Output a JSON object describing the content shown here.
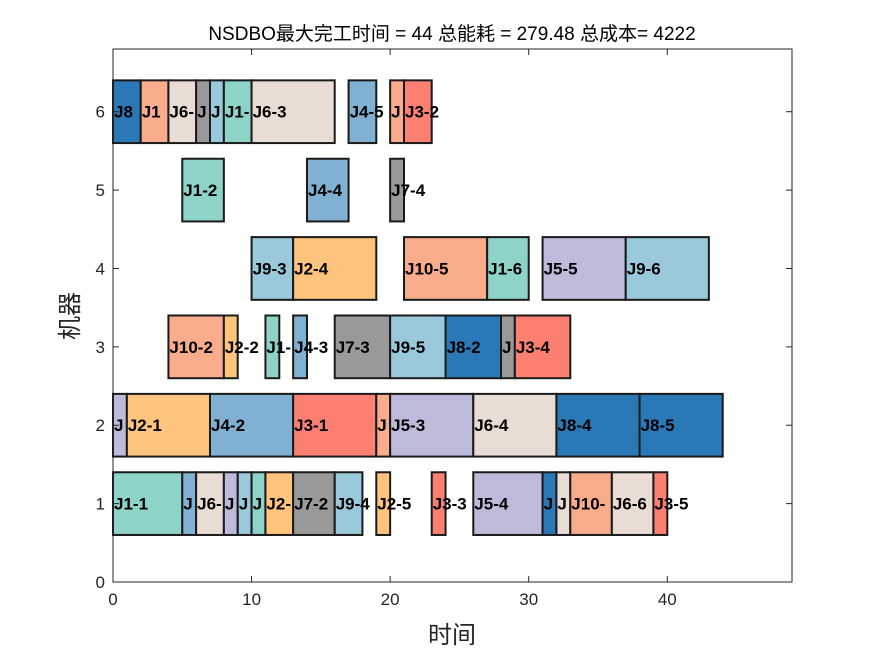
{
  "chart_data": {
    "type": "gantt",
    "title": "NSDBO最大完工时间 = 44 总能耗 = 279.48 总成本= 4222",
    "xlabel": "时间",
    "ylabel": "机器",
    "xlim": [
      0,
      49
    ],
    "ylim": [
      0,
      6.8
    ],
    "xticks": [
      "0",
      "10",
      "20",
      "30",
      "40"
    ],
    "yticks": [
      "0",
      "1",
      "2",
      "3",
      "4",
      "5",
      "6"
    ],
    "job_colors": {
      "J1": "#8dd3c7",
      "J2": "#fec47d",
      "J3": "#fb8072",
      "J4": "#80b1d3",
      "J5": "#bebada",
      "J6": "#e8dcd4",
      "J7": "#999999",
      "J8": "#2a78b5",
      "J9": "#9ac9db",
      "J10": "#f8ac8c"
    },
    "tasks": [
      {
        "machine": 6,
        "job": "J8",
        "start": 0,
        "end": 2,
        "label": "J8"
      },
      {
        "machine": 6,
        "job": "J10",
        "start": 2,
        "end": 4,
        "label": "J1"
      },
      {
        "machine": 6,
        "job": "J6",
        "start": 4,
        "end": 6,
        "label": "J6-"
      },
      {
        "machine": 6,
        "job": "J7",
        "start": 6,
        "end": 7,
        "label": "J"
      },
      {
        "machine": 6,
        "job": "J9",
        "start": 7,
        "end": 8,
        "label": "J"
      },
      {
        "machine": 6,
        "job": "J1",
        "start": 8,
        "end": 10,
        "label": "J1-"
      },
      {
        "machine": 6,
        "job": "J6",
        "start": 10,
        "end": 16,
        "label": "J6-3"
      },
      {
        "machine": 6,
        "job": "J4",
        "start": 17,
        "end": 19,
        "label": "J4-5"
      },
      {
        "machine": 6,
        "job": "J10",
        "start": 20,
        "end": 21,
        "label": "J"
      },
      {
        "machine": 6,
        "job": "J3",
        "start": 21,
        "end": 23,
        "label": "J3-2"
      },
      {
        "machine": 5,
        "job": "J1",
        "start": 5,
        "end": 8,
        "label": "J1-2"
      },
      {
        "machine": 5,
        "job": "J4",
        "start": 14,
        "end": 17,
        "label": "J4-4"
      },
      {
        "machine": 5,
        "job": "J7",
        "start": 20,
        "end": 21,
        "label": "J7-4"
      },
      {
        "machine": 4,
        "job": "J9",
        "start": 10,
        "end": 13,
        "label": "J9-3"
      },
      {
        "machine": 4,
        "job": "J2",
        "start": 13,
        "end": 19,
        "label": "J2-4"
      },
      {
        "machine": 4,
        "job": "J10",
        "start": 21,
        "end": 27,
        "label": "J10-5"
      },
      {
        "machine": 4,
        "job": "J1",
        "start": 27,
        "end": 30,
        "label": "J1-6"
      },
      {
        "machine": 4,
        "job": "J5",
        "start": 31,
        "end": 37,
        "label": "J5-5"
      },
      {
        "machine": 4,
        "job": "J9",
        "start": 37,
        "end": 43,
        "label": "J9-6"
      },
      {
        "machine": 3,
        "job": "J10",
        "start": 4,
        "end": 8,
        "label": "J10-2"
      },
      {
        "machine": 3,
        "job": "J2",
        "start": 8,
        "end": 9,
        "label": "J2-2"
      },
      {
        "machine": 3,
        "job": "J1",
        "start": 11,
        "end": 12,
        "label": "J1-"
      },
      {
        "machine": 3,
        "job": "J4",
        "start": 13,
        "end": 14,
        "label": "J4-3"
      },
      {
        "machine": 3,
        "job": "J7",
        "start": 16,
        "end": 20,
        "label": "J7-3"
      },
      {
        "machine": 3,
        "job": "J9",
        "start": 20,
        "end": 24,
        "label": "J9-5"
      },
      {
        "machine": 3,
        "job": "J8",
        "start": 24,
        "end": 28,
        "label": "J8-2"
      },
      {
        "machine": 3,
        "job": "J7",
        "start": 28,
        "end": 29,
        "label": "J"
      },
      {
        "machine": 3,
        "job": "J3",
        "start": 29,
        "end": 33,
        "label": "J3-4"
      },
      {
        "machine": 2,
        "job": "J5",
        "start": 0,
        "end": 1,
        "label": "J"
      },
      {
        "machine": 2,
        "job": "J2",
        "start": 1,
        "end": 7,
        "label": "J2-1"
      },
      {
        "machine": 2,
        "job": "J4",
        "start": 7,
        "end": 13,
        "label": "J4-2"
      },
      {
        "machine": 2,
        "job": "J3",
        "start": 13,
        "end": 19,
        "label": "J3-1"
      },
      {
        "machine": 2,
        "job": "J10",
        "start": 19,
        "end": 20,
        "label": "J"
      },
      {
        "machine": 2,
        "job": "J5",
        "start": 20,
        "end": 26,
        "label": "J5-3"
      },
      {
        "machine": 2,
        "job": "J6",
        "start": 26,
        "end": 32,
        "label": "J6-4"
      },
      {
        "machine": 2,
        "job": "J8",
        "start": 32,
        "end": 38,
        "label": "J8-4"
      },
      {
        "machine": 2,
        "job": "J8",
        "start": 38,
        "end": 44,
        "label": "J8-5"
      },
      {
        "machine": 1,
        "job": "J1",
        "start": 0,
        "end": 5,
        "label": "J1-1"
      },
      {
        "machine": 1,
        "job": "J4",
        "start": 5,
        "end": 6,
        "label": "J"
      },
      {
        "machine": 1,
        "job": "J6",
        "start": 6,
        "end": 8,
        "label": "J6-"
      },
      {
        "machine": 1,
        "job": "J5",
        "start": 8,
        "end": 9,
        "label": "J"
      },
      {
        "machine": 1,
        "job": "J9",
        "start": 9,
        "end": 10,
        "label": "J"
      },
      {
        "machine": 1,
        "job": "J1",
        "start": 10,
        "end": 11,
        "label": "J"
      },
      {
        "machine": 1,
        "job": "J2",
        "start": 11,
        "end": 13,
        "label": "J2-"
      },
      {
        "machine": 1,
        "job": "J7",
        "start": 13,
        "end": 16,
        "label": "J7-2"
      },
      {
        "machine": 1,
        "job": "J9",
        "start": 16,
        "end": 18,
        "label": "J9-4"
      },
      {
        "machine": 1,
        "job": "J2",
        "start": 19,
        "end": 20,
        "label": "J2-5"
      },
      {
        "machine": 1,
        "job": "J3",
        "start": 23,
        "end": 24,
        "label": "J3-3"
      },
      {
        "machine": 1,
        "job": "J5",
        "start": 26,
        "end": 31,
        "label": "J5-4"
      },
      {
        "machine": 1,
        "job": "J8",
        "start": 31,
        "end": 32,
        "label": "J"
      },
      {
        "machine": 1,
        "job": "J6",
        "start": 32,
        "end": 33,
        "label": "J"
      },
      {
        "machine": 1,
        "job": "J10",
        "start": 33,
        "end": 36,
        "label": "J10-"
      },
      {
        "machine": 1,
        "job": "J6",
        "start": 36,
        "end": 39,
        "label": "J6-6"
      },
      {
        "machine": 1,
        "job": "J3",
        "start": 39,
        "end": 40,
        "label": "J3-5"
      }
    ]
  }
}
